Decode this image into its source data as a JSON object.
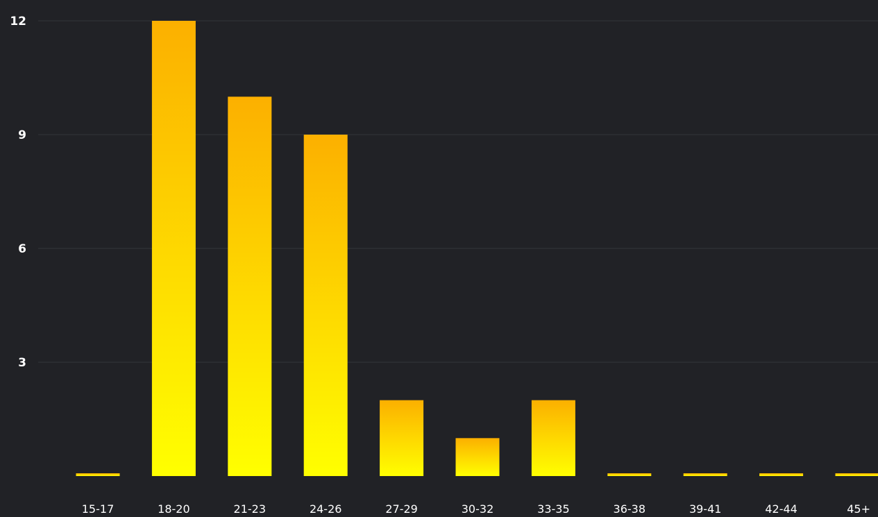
{
  "chart_data": {
    "type": "bar",
    "title": "",
    "xlabel": "",
    "ylabel": "",
    "categories": [
      "15-17",
      "18-20",
      "21-23",
      "24-26",
      "27-29",
      "30-32",
      "33-35",
      "36-38",
      "39-41",
      "42-44",
      "45+"
    ],
    "values": [
      0,
      12,
      10,
      9,
      2,
      1,
      2,
      0,
      0,
      0,
      0
    ],
    "ylim": [
      0,
      12
    ],
    "yticks": [
      3,
      6,
      9,
      12
    ],
    "grid": true,
    "legend": "none",
    "colors": {
      "background": "#212226",
      "grid": "#34363b",
      "bar_top": "#fcb000",
      "bar_bottom": "#ffff00",
      "text": "#ffffff"
    }
  }
}
